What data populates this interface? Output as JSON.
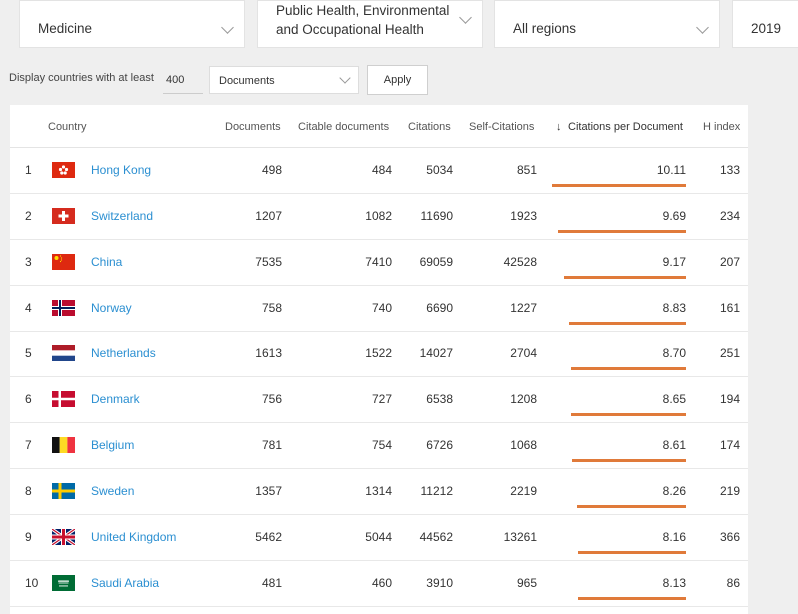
{
  "filters": {
    "subject_area": "Medicine",
    "subject_category_line1": "Public Health, Environmental",
    "subject_category_line2": "and Occupational Health",
    "region": "All regions",
    "year": "2019"
  },
  "threshold": {
    "label": "Display countries with at least",
    "value": "400",
    "metric": "Documents",
    "apply_label": "Apply"
  },
  "columns": {
    "country": "Country",
    "documents": "Documents",
    "citable_documents": "Citable documents",
    "citations": "Citations",
    "self_citations": "Self-Citations",
    "sort_arrow": "↓",
    "citations_per_document": "Citations per Document",
    "h_index": "H index"
  },
  "rows": [
    {
      "rank": "1",
      "country": "Hong Kong",
      "flag": "hong-kong-flag",
      "documents": "498",
      "citable": "484",
      "citations": "5034",
      "self_citations": "851",
      "cpd": "10.11",
      "h_index": "133"
    },
    {
      "rank": "2",
      "country": "Switzerland",
      "flag": "switzerland-flag",
      "documents": "1207",
      "citable": "1082",
      "citations": "11690",
      "self_citations": "1923",
      "cpd": "9.69",
      "h_index": "234"
    },
    {
      "rank": "3",
      "country": "China",
      "flag": "china-flag",
      "documents": "7535",
      "citable": "7410",
      "citations": "69059",
      "self_citations": "42528",
      "cpd": "9.17",
      "h_index": "207"
    },
    {
      "rank": "4",
      "country": "Norway",
      "flag": "norway-flag",
      "documents": "758",
      "citable": "740",
      "citations": "6690",
      "self_citations": "1227",
      "cpd": "8.83",
      "h_index": "161"
    },
    {
      "rank": "5",
      "country": "Netherlands",
      "flag": "netherlands-flag",
      "documents": "1613",
      "citable": "1522",
      "citations": "14027",
      "self_citations": "2704",
      "cpd": "8.70",
      "h_index": "251"
    },
    {
      "rank": "6",
      "country": "Denmark",
      "flag": "denmark-flag",
      "documents": "756",
      "citable": "727",
      "citations": "6538",
      "self_citations": "1208",
      "cpd": "8.65",
      "h_index": "194"
    },
    {
      "rank": "7",
      "country": "Belgium",
      "flag": "belgium-flag",
      "documents": "781",
      "citable": "754",
      "citations": "6726",
      "self_citations": "1068",
      "cpd": "8.61",
      "h_index": "174"
    },
    {
      "rank": "8",
      "country": "Sweden",
      "flag": "sweden-flag",
      "documents": "1357",
      "citable": "1314",
      "citations": "11212",
      "self_citations": "2219",
      "cpd": "8.26",
      "h_index": "219"
    },
    {
      "rank": "9",
      "country": "United Kingdom",
      "flag": "united-kingdom-flag",
      "documents": "5462",
      "citable": "5044",
      "citations": "44562",
      "self_citations": "13261",
      "cpd": "8.16",
      "h_index": "366"
    },
    {
      "rank": "10",
      "country": "Saudi Arabia",
      "flag": "saudi-arabia-flag",
      "documents": "481",
      "citable": "460",
      "citations": "3910",
      "self_citations": "965",
      "cpd": "8.13",
      "h_index": "86"
    }
  ],
  "colors": {
    "accent_bar": "#e07a3a",
    "link": "#2b8fd1"
  }
}
